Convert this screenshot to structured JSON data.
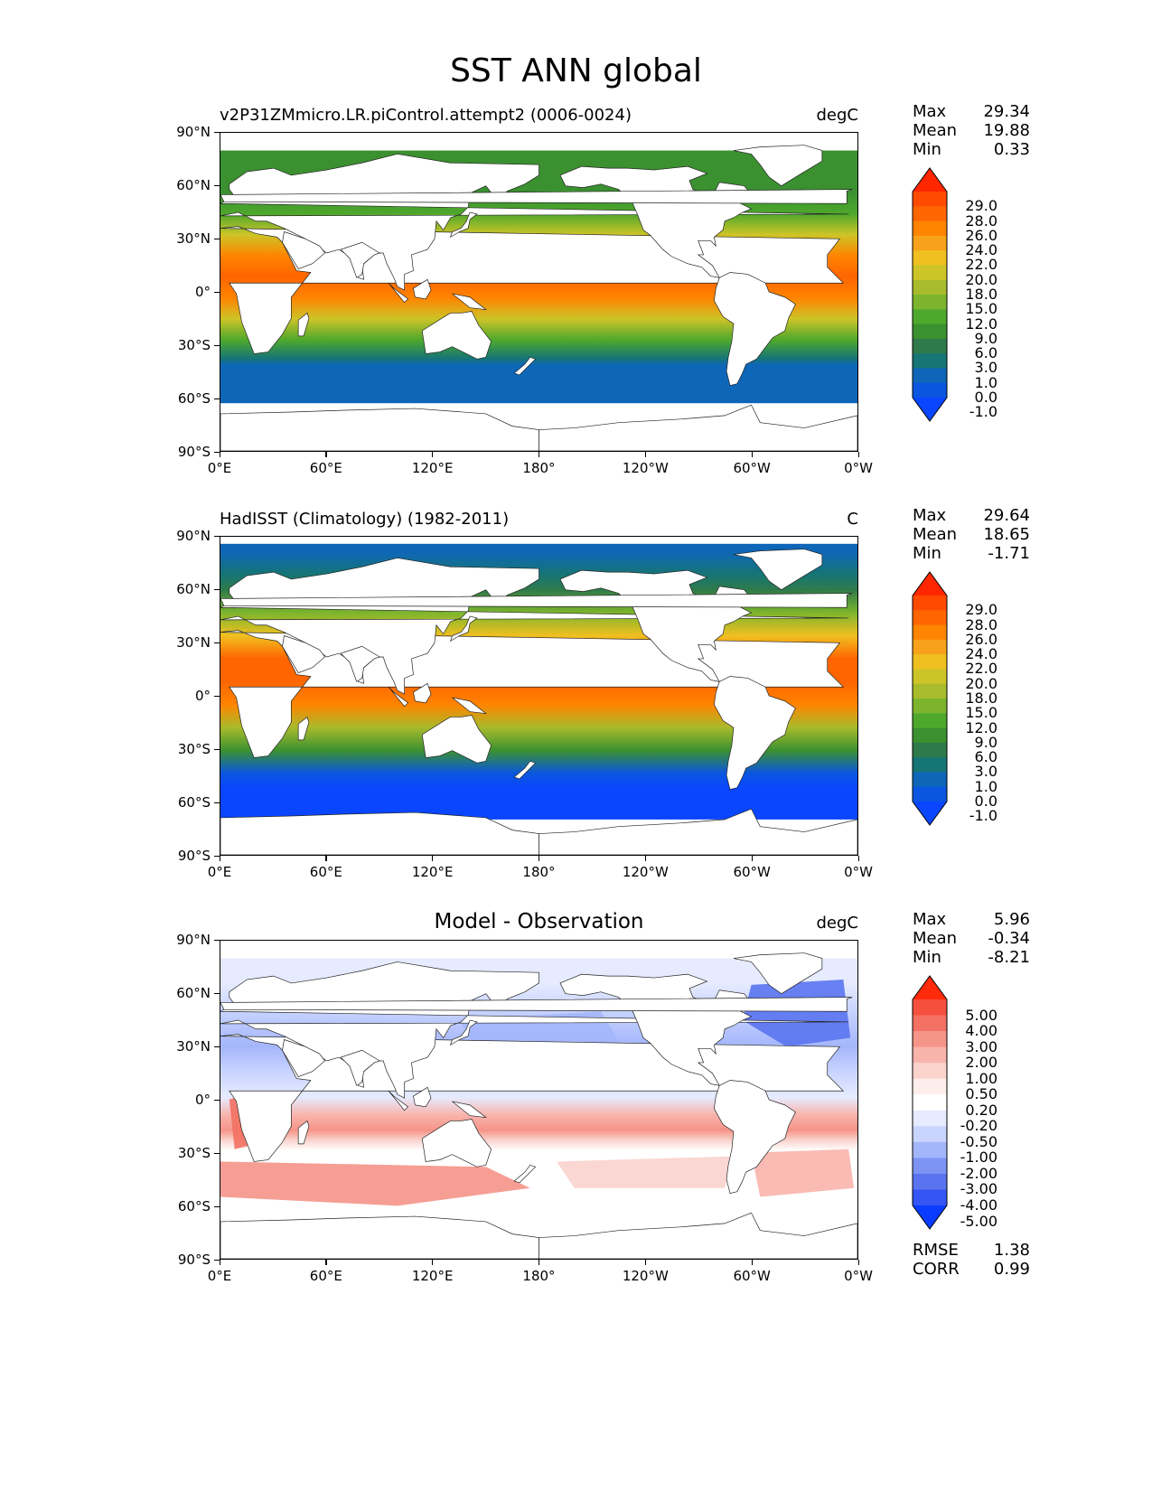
{
  "figure": {
    "title": "SST ANN global"
  },
  "axes": {
    "y_ticks": [
      "90°N",
      "60°N",
      "30°N",
      "0°",
      "30°S",
      "60°S",
      "90°S"
    ],
    "x_ticks": [
      "0°E",
      "60°E",
      "120°E",
      "180°",
      "120°W",
      "60°W",
      "0°W"
    ]
  },
  "panels": [
    {
      "title": "v2P31ZMmicro.LR.piControl.attempt2 (0006-0024)",
      "units": "degC",
      "stats": [
        {
          "name": "Max",
          "value": "29.34"
        },
        {
          "name": "Mean",
          "value": "19.88"
        },
        {
          "name": "Min",
          "value": "0.33"
        }
      ],
      "colorbar_labels": [
        "29.0",
        "28.0",
        "26.0",
        "24.0",
        "22.0",
        "20.0",
        "18.0",
        "15.0",
        "12.0",
        "9.0",
        "6.0",
        "3.0",
        "1.0",
        "0.0",
        "-1.0"
      ],
      "colorbar_colors": [
        "#ff2600",
        "#ff4a00",
        "#ff6500",
        "#ff8400",
        "#f7a21a",
        "#f0c021",
        "#cdc428",
        "#a8bb2c",
        "#7cb52d",
        "#4ea82c",
        "#3b9030",
        "#2f7a4a",
        "#167575",
        "#0e66b8",
        "#0a56e0",
        "#0a46ff"
      ]
    },
    {
      "title": "HadISST (Climatology) (1982-2011)",
      "units": "C",
      "stats": [
        {
          "name": "Max",
          "value": "29.64"
        },
        {
          "name": "Mean",
          "value": "18.65"
        },
        {
          "name": "Min",
          "value": "-1.71"
        }
      ],
      "colorbar_labels": [
        "29.0",
        "28.0",
        "26.0",
        "24.0",
        "22.0",
        "20.0",
        "18.0",
        "15.0",
        "12.0",
        "9.0",
        "6.0",
        "3.0",
        "1.0",
        "0.0",
        "-1.0"
      ],
      "colorbar_colors": [
        "#ff2600",
        "#ff4a00",
        "#ff6500",
        "#ff8400",
        "#f7a21a",
        "#f0c021",
        "#cdc428",
        "#a8bb2c",
        "#7cb52d",
        "#4ea82c",
        "#3b9030",
        "#2f7a4a",
        "#167575",
        "#0e66b8",
        "#0a56e0",
        "#0a46ff"
      ]
    },
    {
      "title": "Model - Observation",
      "units": "degC",
      "stats": [
        {
          "name": "Max",
          "value": "5.96"
        },
        {
          "name": "Mean",
          "value": "-0.34"
        },
        {
          "name": "Min",
          "value": "-8.21"
        }
      ],
      "colorbar_labels": [
        "5.00",
        "4.00",
        "3.00",
        "2.00",
        "1.00",
        "0.50",
        "0.20",
        "-0.20",
        "-0.50",
        "-1.00",
        "-2.00",
        "-3.00",
        "-4.00",
        "-5.00"
      ],
      "colorbar_colors": [
        "#ff2a0a",
        "#f5503e",
        "#f27163",
        "#f59488",
        "#f8b4ab",
        "#fad3cd",
        "#fdeeec",
        "#ffffff",
        "#e6ebff",
        "#c9d4ff",
        "#a4b6fb",
        "#7e94f5",
        "#5a74f0",
        "#3556f4",
        "#0a3cff"
      ],
      "extra_stats": [
        {
          "name": "RMSE",
          "value": "1.38"
        },
        {
          "name": "CORR",
          "value": "0.99"
        }
      ]
    }
  ],
  "chart_data": [
    {
      "type": "heatmap",
      "title": "v2P31ZMmicro.LR.piControl.attempt2 (0006-0024)",
      "variable": "SST",
      "units": "degC",
      "x_range": [
        0,
        360
      ],
      "y_range": [
        -90,
        90
      ],
      "stats": {
        "max": 29.34,
        "mean": 19.88,
        "min": 0.33
      },
      "levels": [
        -1.0,
        0.0,
        1.0,
        3.0,
        6.0,
        9.0,
        12.0,
        15.0,
        18.0,
        20.0,
        22.0,
        24.0,
        26.0,
        28.0,
        29.0
      ],
      "zonal_pattern_approx": {
        "lat": [
          -60,
          -45,
          -30,
          -15,
          0,
          15,
          30,
          45,
          60
        ],
        "value": [
          1.0,
          8,
          16,
          24,
          27,
          26,
          21,
          13,
          6
        ]
      }
    },
    {
      "type": "heatmap",
      "title": "HadISST (Climatology) (1982-2011)",
      "variable": "SST",
      "units": "C",
      "x_range": [
        0,
        360
      ],
      "y_range": [
        -90,
        90
      ],
      "stats": {
        "max": 29.64,
        "mean": 18.65,
        "min": -1.71
      },
      "levels": [
        -1.0,
        0.0,
        1.0,
        3.0,
        6.0,
        9.0,
        12.0,
        15.0,
        18.0,
        20.0,
        22.0,
        24.0,
        26.0,
        28.0,
        29.0
      ],
      "zonal_pattern_approx": {
        "lat": [
          -70,
          -60,
          -45,
          -30,
          -15,
          0,
          15,
          30,
          45,
          60,
          75
        ],
        "value": [
          -1.5,
          0,
          7,
          16,
          25,
          28,
          27,
          22,
          14,
          6,
          1
        ]
      }
    },
    {
      "type": "heatmap",
      "title": "Model - Observation",
      "variable": "SST difference",
      "units": "degC",
      "x_range": [
        0,
        360
      ],
      "y_range": [
        -90,
        90
      ],
      "stats": {
        "max": 5.96,
        "mean": -0.34,
        "min": -8.21,
        "rmse": 1.38,
        "corr": 0.99
      },
      "levels": [
        -5.0,
        -4.0,
        -3.0,
        -2.0,
        -1.0,
        -0.5,
        -0.2,
        0.2,
        0.5,
        1.0,
        2.0,
        3.0,
        4.0,
        5.0
      ]
    }
  ]
}
